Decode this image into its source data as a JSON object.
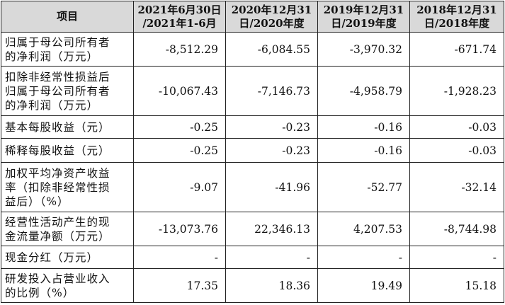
{
  "table": {
    "headers": [
      [
        "项目"
      ],
      [
        "2021年6月30日",
        "/2021年1-6月"
      ],
      [
        "2020年12月31",
        "日/2020年度"
      ],
      [
        "2019年12月31",
        "日/2019年度"
      ],
      [
        "2018年12月31",
        "日/2018年度"
      ]
    ],
    "rows": [
      {
        "label": [
          "归属于母公司所有者",
          "的净利润（万元）"
        ],
        "values": [
          "-8,512.29",
          "-6,084.55",
          "-3,970.32",
          "-671.74"
        ]
      },
      {
        "label": [
          "扣除非经常性损益后",
          "归属于母公司所有者",
          "的净利润（万元）"
        ],
        "values": [
          "-10,067.43",
          "-7,146.73",
          "-4,958.79",
          "-1,928.23"
        ]
      },
      {
        "label": [
          "基本每股收益（元）"
        ],
        "values": [
          "-0.25",
          "-0.23",
          "-0.16",
          "-0.03"
        ]
      },
      {
        "label": [
          "稀释每股收益（元）"
        ],
        "values": [
          "-0.25",
          "-0.23",
          "-0.16",
          "-0.03"
        ]
      },
      {
        "label": [
          "加权平均净资产收益",
          "率（扣除非经常性损",
          "益后）（%）"
        ],
        "values": [
          "-9.07",
          "-41.96",
          "-52.77",
          "-32.14"
        ]
      },
      {
        "label": [
          "经营性活动产生的现",
          "金流量净额（万元）"
        ],
        "values": [
          "-13,073.76",
          "22,346.13",
          "4,207.53",
          "-8,744.98"
        ]
      },
      {
        "label": [
          "现金分红（万元）"
        ],
        "values": [
          "-",
          "-",
          "-",
          "-"
        ]
      },
      {
        "label": [
          "研发投入占营业收入",
          "的比例（%）"
        ],
        "values": [
          "17.35",
          "18.36",
          "19.49",
          "15.18"
        ]
      }
    ]
  }
}
